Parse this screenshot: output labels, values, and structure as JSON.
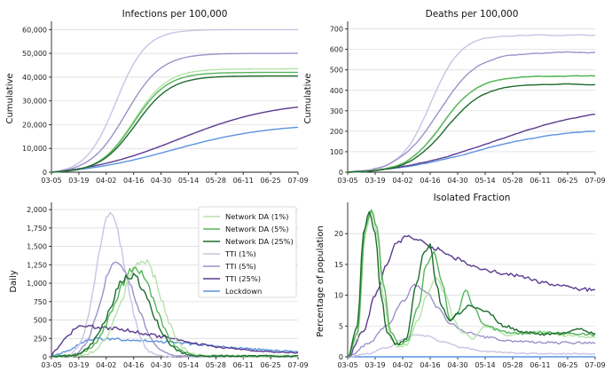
{
  "colors": {
    "network_da_1": "#b5e3a8",
    "network_da_5": "#55b55a",
    "network_da_25": "#1d6b2e",
    "tti_1": "#c9c3e3",
    "tti_5": "#9a93c9",
    "tti_25": "#5b3a8f",
    "lockdown": "#5b93df"
  },
  "x_ticks": [
    "03-05",
    "03-19",
    "04-02",
    "04-16",
    "04-30",
    "05-14",
    "05-28",
    "06-11",
    "06-25",
    "07-09"
  ],
  "chart_data": [
    {
      "type": "line",
      "title": "Infections per 100,000",
      "xlabel": "",
      "ylabel": "Cumulative",
      "ylim": [
        0,
        62000
      ],
      "yticks": [
        0,
        10000,
        20000,
        30000,
        40000,
        50000,
        60000
      ],
      "ytick_labels": [
        "0",
        "10,000",
        "20,000",
        "30,000",
        "40,000",
        "50,000",
        "60,000"
      ],
      "grid": "horizontal",
      "series": [
        {
          "name": "Network DA (1%)",
          "color": "#b5e3a8",
          "kind": "sigmoid",
          "final": 43500,
          "center": 42,
          "rate": 0.115
        },
        {
          "name": "Network DA (5%)",
          "color": "#55b55a",
          "kind": "sigmoid",
          "final": 42000,
          "center": 42,
          "rate": 0.115
        },
        {
          "name": "Network DA (25%)",
          "color": "#1d6b2e",
          "kind": "sigmoid",
          "final": 40500,
          "center": 43,
          "rate": 0.11
        },
        {
          "name": "TTI (1%)",
          "color": "#c9c3e3",
          "kind": "sigmoid",
          "final": 60000,
          "center": 33,
          "rate": 0.13
        },
        {
          "name": "TTI (5%)",
          "color": "#9a93c9",
          "kind": "sigmoid",
          "final": 50000,
          "center": 38,
          "rate": 0.11
        },
        {
          "name": "TTI (25%)",
          "color": "#5b3a8f",
          "kind": "sigmoid",
          "final": 30000,
          "center": 65,
          "rate": 0.04
        },
        {
          "name": "Lockdown",
          "color": "#5b93df",
          "kind": "sigmoid",
          "final": 20500,
          "center": 62,
          "rate": 0.04
        }
      ]
    },
    {
      "type": "line",
      "title": "Deaths per 100,000",
      "xlabel": "",
      "ylabel": "Cumulative",
      "ylim": [
        0,
        720
      ],
      "yticks": [
        0,
        100,
        200,
        300,
        400,
        500,
        600,
        700
      ],
      "ytick_labels": [
        "0",
        "100",
        "200",
        "300",
        "400",
        "500",
        "600",
        "700"
      ],
      "grid": "horizontal",
      "series": [
        {
          "name": "Network DA (1%)",
          "color": "#b5e3a8",
          "kind": "sigmoid",
          "final": 470,
          "center": 48,
          "rate": 0.11,
          "noise": 5
        },
        {
          "name": "Network DA (5%)",
          "color": "#55b55a",
          "kind": "sigmoid",
          "final": 470,
          "center": 48,
          "rate": 0.11,
          "noise": 5
        },
        {
          "name": "Network DA (25%)",
          "color": "#1d6b2e",
          "kind": "sigmoid",
          "final": 430,
          "center": 50,
          "rate": 0.105,
          "noise": 5
        },
        {
          "name": "TTI (1%)",
          "color": "#c9c3e3",
          "kind": "sigmoid",
          "final": 670,
          "center": 42,
          "rate": 0.13,
          "noise": 6
        },
        {
          "name": "TTI (5%)",
          "color": "#9a93c9",
          "kind": "sigmoid",
          "final": 585,
          "center": 46,
          "rate": 0.1,
          "noise": 6
        },
        {
          "name": "TTI (25%)",
          "color": "#5b3a8f",
          "kind": "sigmoid",
          "final": 320,
          "center": 75,
          "rate": 0.04,
          "noise": 4
        },
        {
          "name": "Lockdown",
          "color": "#5b93df",
          "kind": "sigmoid",
          "final": 215,
          "center": 65,
          "rate": 0.045,
          "noise": 3
        }
      ]
    },
    {
      "type": "line",
      "title": "",
      "xlabel": "",
      "ylabel": "Daily",
      "ylim": [
        0,
        2050
      ],
      "yticks": [
        0,
        250,
        500,
        750,
        1000,
        1250,
        1500,
        1750,
        2000
      ],
      "ytick_labels": [
        "0",
        "250",
        "500",
        "750",
        "1,000",
        "1,250",
        "1,500",
        "1,750",
        "2,000"
      ],
      "grid": "horizontal",
      "legend": "top-right",
      "series": [
        {
          "name": "Network DA (1%)",
          "color": "#b5e3a8",
          "kind": "peak",
          "peak_val": 1300,
          "peak_day": 47,
          "w_left": 15,
          "w_right": 13,
          "base": 10,
          "noise": 60
        },
        {
          "name": "Network DA (5%)",
          "color": "#55b55a",
          "kind": "peak",
          "peak_val": 1180,
          "peak_day": 43,
          "w_left": 15,
          "w_right": 14,
          "base": 10,
          "noise": 55
        },
        {
          "name": "Network DA (25%)",
          "color": "#1d6b2e",
          "kind": "peak",
          "peak_val": 1100,
          "peak_day": 40,
          "w_left": 14,
          "w_right": 15,
          "base": 10,
          "noise": 55
        },
        {
          "name": "TTI (1%)",
          "color": "#c9c3e3",
          "kind": "peak",
          "peak_val": 1920,
          "peak_day": 30,
          "w_left": 10,
          "w_right": 11,
          "base": 5,
          "noise": 50
        },
        {
          "name": "TTI (5%)",
          "color": "#9a93c9",
          "kind": "peak",
          "peak_val": 1300,
          "peak_day": 33,
          "w_left": 11,
          "w_right": 14,
          "base": 5,
          "noise": 50
        },
        {
          "name": "TTI (25%)",
          "color": "#5b3a8f",
          "kind": "peak",
          "peak_val": 370,
          "peak_day": 15,
          "w_left": 10,
          "w_right": 60,
          "base": 40,
          "noise": 25
        },
        {
          "name": "Lockdown",
          "color": "#5b93df",
          "kind": "peak",
          "peak_val": 210,
          "peak_day": 22,
          "w_left": 12,
          "w_right": 80,
          "base": 30,
          "noise": 20
        }
      ]
    },
    {
      "type": "line",
      "title": "Isolated Fraction",
      "xlabel": "",
      "ylabel": "Percentage of population",
      "ylim": [
        0,
        24.5
      ],
      "yticks": [
        0,
        5,
        10,
        15,
        20
      ],
      "ytick_labels": [
        "0",
        "5",
        "10",
        "15",
        "20"
      ],
      "grid": "horizontal",
      "series": [
        {
          "name": "Network DA (1%)",
          "color": "#b5e3a8",
          "kind": "points",
          "noise": 0.2,
          "points": [
            [
              0,
              0
            ],
            [
              5,
              3
            ],
            [
              9,
              20
            ],
            [
              12,
              23.5
            ],
            [
              15,
              20
            ],
            [
              18,
              10
            ],
            [
              22,
              3
            ],
            [
              26,
              1.5
            ],
            [
              30,
              2
            ],
            [
              36,
              6
            ],
            [
              40,
              10
            ],
            [
              45,
              13
            ],
            [
              50,
              10
            ],
            [
              54,
              6
            ],
            [
              58,
              4
            ],
            [
              64,
              3
            ],
            [
              70,
              5
            ],
            [
              75,
              4.5
            ],
            [
              80,
              3.5
            ],
            [
              90,
              4
            ],
            [
              100,
              4
            ],
            [
              110,
              3.5
            ],
            [
              126,
              3.2
            ]
          ]
        },
        {
          "name": "Network DA (5%)",
          "color": "#55b55a",
          "kind": "points",
          "noise": 0.2,
          "points": [
            [
              0,
              0
            ],
            [
              5,
              4
            ],
            [
              9,
              21
            ],
            [
              12,
              23.8
            ],
            [
              15,
              21
            ],
            [
              18,
              12
            ],
            [
              22,
              4
            ],
            [
              26,
              2
            ],
            [
              30,
              2.5
            ],
            [
              36,
              8
            ],
            [
              40,
              15
            ],
            [
              44,
              17
            ],
            [
              48,
              12
            ],
            [
              52,
              6
            ],
            [
              56,
              7
            ],
            [
              60,
              11
            ],
            [
              64,
              8
            ],
            [
              70,
              5
            ],
            [
              80,
              4
            ],
            [
              90,
              3.8
            ],
            [
              100,
              4
            ],
            [
              110,
              3.8
            ],
            [
              126,
              3.6
            ]
          ]
        },
        {
          "name": "Network DA (25%)",
          "color": "#1d6b2e",
          "kind": "points",
          "noise": 0.2,
          "points": [
            [
              0,
              0
            ],
            [
              5,
              5
            ],
            [
              8,
              20
            ],
            [
              11,
              23.5
            ],
            [
              14,
              20
            ],
            [
              17,
              10
            ],
            [
              20,
              4
            ],
            [
              25,
              2
            ],
            [
              30,
              3
            ],
            [
              35,
              12
            ],
            [
              39,
              17
            ],
            [
              42,
              18.3
            ],
            [
              45,
              12
            ],
            [
              48,
              8
            ],
            [
              52,
              6
            ],
            [
              56,
              7
            ],
            [
              62,
              8.3
            ],
            [
              70,
              7.5
            ],
            [
              80,
              5
            ],
            [
              90,
              4
            ],
            [
              100,
              3.6
            ],
            [
              110,
              3.8
            ],
            [
              118,
              4.5
            ],
            [
              126,
              3.8
            ]
          ]
        },
        {
          "name": "TTI (1%)",
          "color": "#c9c3e3",
          "kind": "points",
          "noise": 0.1,
          "points": [
            [
              0,
              0
            ],
            [
              10,
              0.5
            ],
            [
              20,
              1.5
            ],
            [
              28,
              2.8
            ],
            [
              34,
              3.6
            ],
            [
              40,
              3.4
            ],
            [
              48,
              2.5
            ],
            [
              58,
              1.5
            ],
            [
              70,
              0.9
            ],
            [
              85,
              0.6
            ],
            [
              100,
              0.5
            ],
            [
              126,
              0.5
            ]
          ]
        },
        {
          "name": "TTI (5%)",
          "color": "#9a93c9",
          "kind": "points",
          "noise": 0.2,
          "points": [
            [
              0,
              0
            ],
            [
              10,
              2
            ],
            [
              20,
              5
            ],
            [
              28,
              9
            ],
            [
              34,
              11.6
            ],
            [
              40,
              10.5
            ],
            [
              46,
              8
            ],
            [
              52,
              5.5
            ],
            [
              60,
              4
            ],
            [
              70,
              3.2
            ],
            [
              85,
              2.5
            ],
            [
              100,
              2.3
            ],
            [
              126,
              2.3
            ]
          ]
        },
        {
          "name": "TTI (25%)",
          "color": "#5b3a8f",
          "kind": "points",
          "noise": 0.3,
          "points": [
            [
              0,
              0
            ],
            [
              8,
              4
            ],
            [
              14,
              10
            ],
            [
              20,
              15
            ],
            [
              25,
              18.5
            ],
            [
              30,
              19.5
            ],
            [
              36,
              19
            ],
            [
              45,
              17.5
            ],
            [
              55,
              16
            ],
            [
              65,
              14.5
            ],
            [
              80,
              13.5
            ],
            [
              90,
              13
            ],
            [
              100,
              12
            ],
            [
              110,
              11.5
            ],
            [
              120,
              11
            ],
            [
              126,
              10.7
            ]
          ]
        },
        {
          "name": "Lockdown",
          "color": "#5b93df",
          "kind": "points",
          "noise": 0,
          "points": [
            [
              0,
              0
            ],
            [
              126,
              0
            ]
          ]
        }
      ]
    }
  ]
}
